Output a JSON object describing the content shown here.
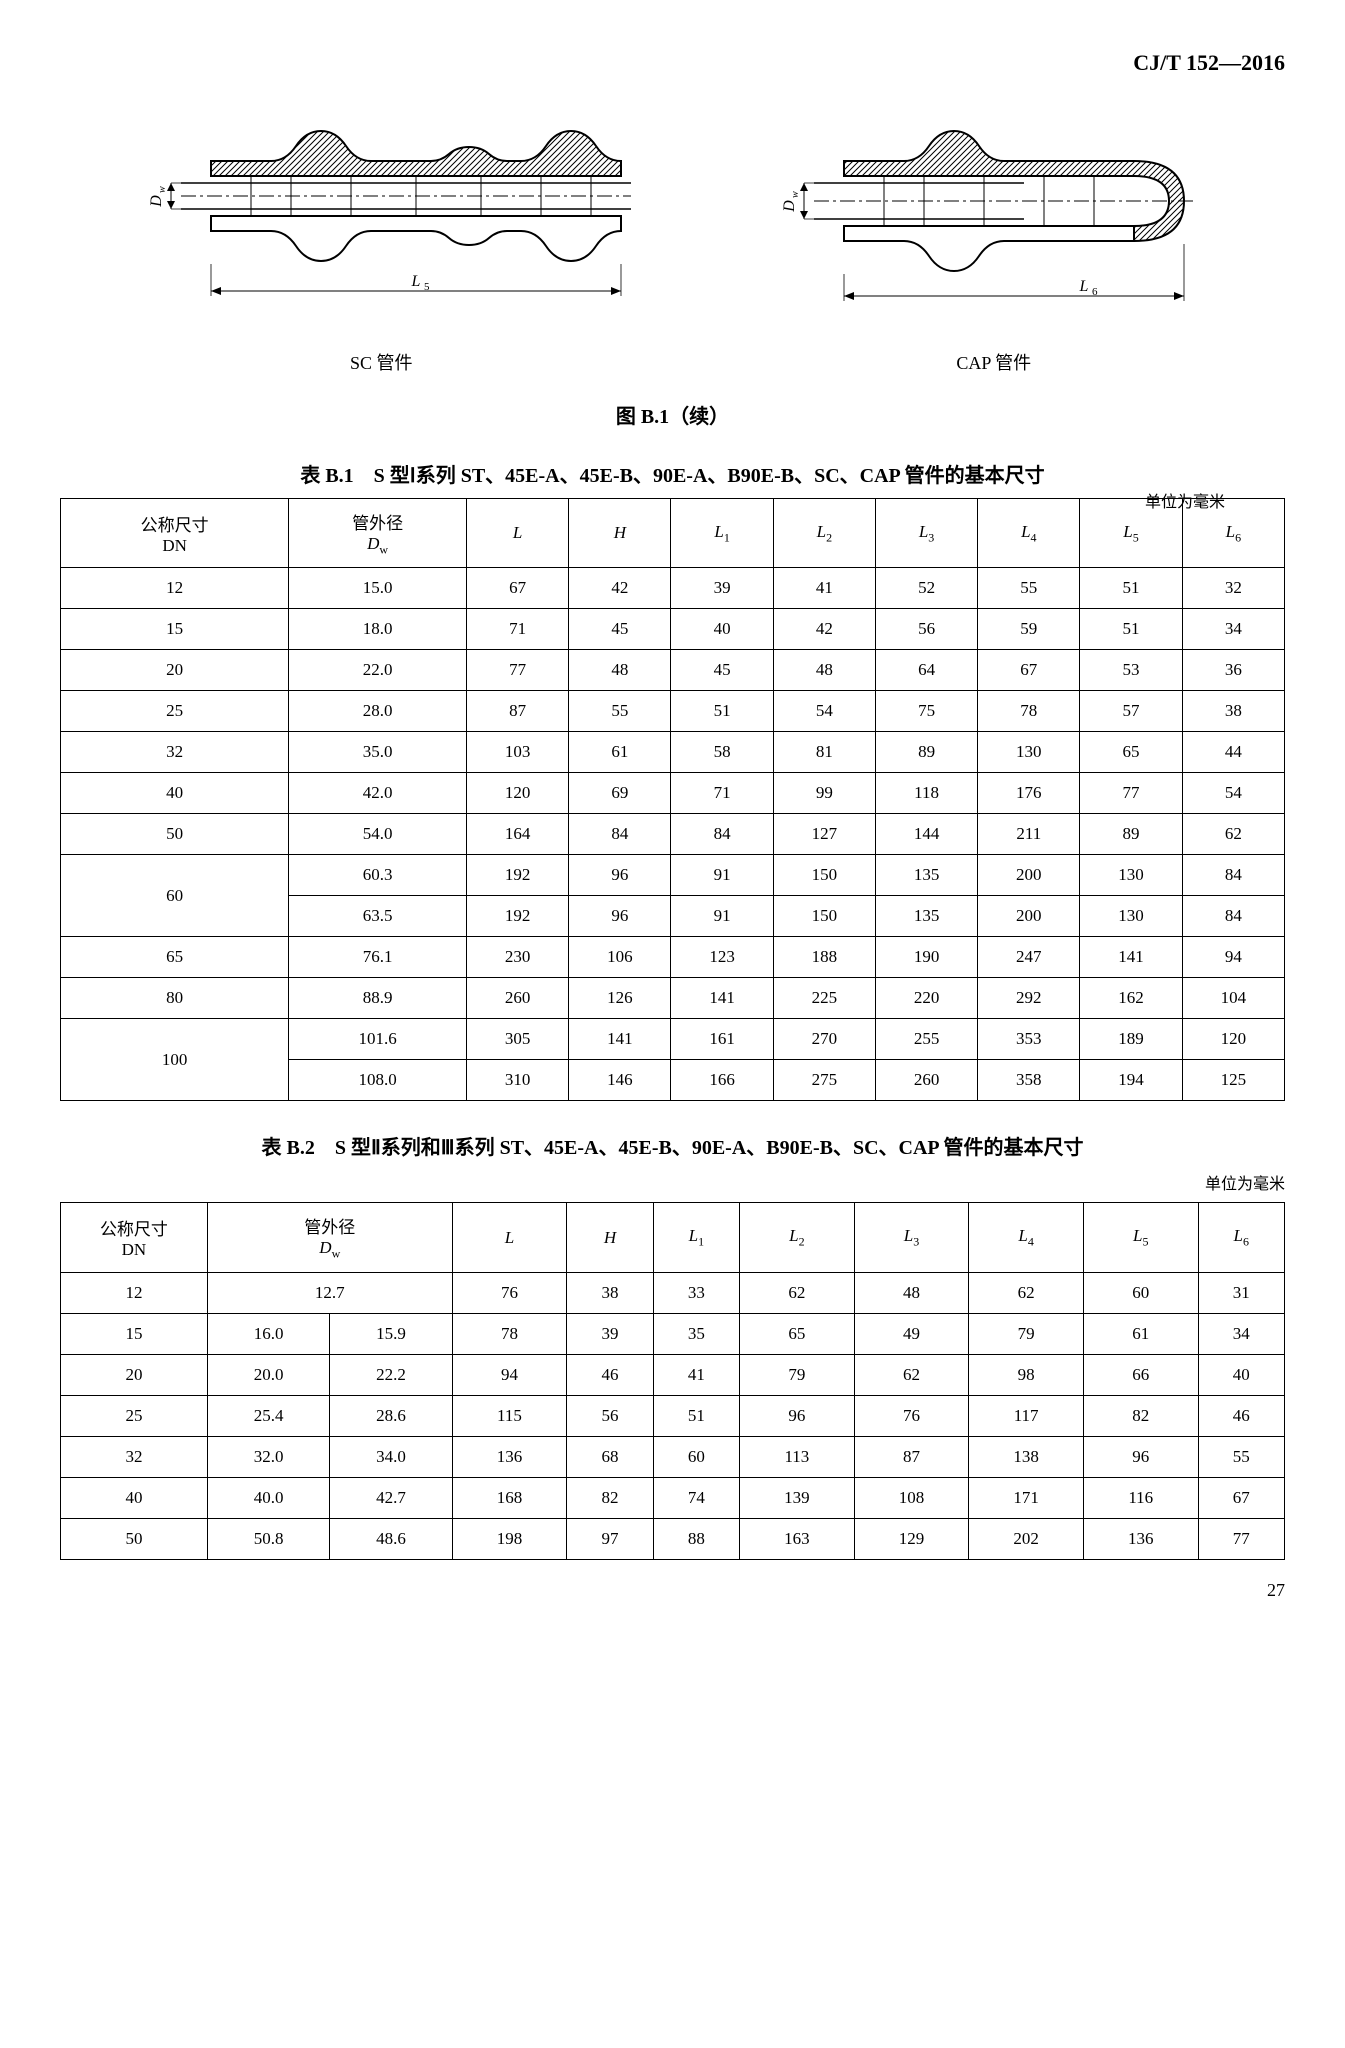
{
  "doc_code": "CJ/T 152—2016",
  "diagrams": {
    "left": {
      "dim_v": "Dw",
      "dim_h": "L5",
      "label": "SC 管件"
    },
    "right": {
      "dim_v": "Dw",
      "dim_h": "L6",
      "label": "CAP 管件"
    }
  },
  "fig_caption": "图 B.1（续）",
  "table1": {
    "title": "表 B.1　S 型Ⅰ系列 ST、45E-A、45E-B、90E-A、B90E-B、SC、CAP 管件的基本尺寸",
    "unit": "单位为毫米",
    "headers": {
      "dn": "公称尺寸\nDN",
      "dw": "管外径\nDw",
      "L": "L",
      "H": "H",
      "L1": "L1",
      "L2": "L2",
      "L3": "L3",
      "L4": "L4",
      "L5": "L5",
      "L6": "L6"
    },
    "rows": [
      {
        "dn": "12",
        "dw": "15.0",
        "L": "67",
        "H": "42",
        "L1": "39",
        "L2": "41",
        "L3": "52",
        "L4": "55",
        "L5": "51",
        "L6": "32"
      },
      {
        "dn": "15",
        "dw": "18.0",
        "L": "71",
        "H": "45",
        "L1": "40",
        "L2": "42",
        "L3": "56",
        "L4": "59",
        "L5": "51",
        "L6": "34"
      },
      {
        "dn": "20",
        "dw": "22.0",
        "L": "77",
        "H": "48",
        "L1": "45",
        "L2": "48",
        "L3": "64",
        "L4": "67",
        "L5": "53",
        "L6": "36"
      },
      {
        "dn": "25",
        "dw": "28.0",
        "L": "87",
        "H": "55",
        "L1": "51",
        "L2": "54",
        "L3": "75",
        "L4": "78",
        "L5": "57",
        "L6": "38"
      },
      {
        "dn": "32",
        "dw": "35.0",
        "L": "103",
        "H": "61",
        "L1": "58",
        "L2": "81",
        "L3": "89",
        "L4": "130",
        "L5": "65",
        "L6": "44"
      },
      {
        "dn": "40",
        "dw": "42.0",
        "L": "120",
        "H": "69",
        "L1": "71",
        "L2": "99",
        "L3": "118",
        "L4": "176",
        "L5": "77",
        "L6": "54"
      },
      {
        "dn": "50",
        "dw": "54.0",
        "L": "164",
        "H": "84",
        "L1": "84",
        "L2": "127",
        "L3": "144",
        "L4": "211",
        "L5": "89",
        "L6": "62"
      },
      {
        "dn": "60",
        "dn_span": 2,
        "dw": "60.3",
        "L": "192",
        "H": "96",
        "L1": "91",
        "L2": "150",
        "L3": "135",
        "L4": "200",
        "L5": "130",
        "L6": "84"
      },
      {
        "dw": "63.5",
        "L": "192",
        "H": "96",
        "L1": "91",
        "L2": "150",
        "L3": "135",
        "L4": "200",
        "L5": "130",
        "L6": "84"
      },
      {
        "dn": "65",
        "dw": "76.1",
        "L": "230",
        "H": "106",
        "L1": "123",
        "L2": "188",
        "L3": "190",
        "L4": "247",
        "L5": "141",
        "L6": "94"
      },
      {
        "dn": "80",
        "dw": "88.9",
        "L": "260",
        "H": "126",
        "L1": "141",
        "L2": "225",
        "L3": "220",
        "L4": "292",
        "L5": "162",
        "L6": "104"
      },
      {
        "dn": "100",
        "dn_span": 2,
        "dw": "101.6",
        "L": "305",
        "H": "141",
        "L1": "161",
        "L2": "270",
        "L3": "255",
        "L4": "353",
        "L5": "189",
        "L6": "120"
      },
      {
        "dw": "108.0",
        "L": "310",
        "H": "146",
        "L1": "166",
        "L2": "275",
        "L3": "260",
        "L4": "358",
        "L5": "194",
        "L6": "125"
      }
    ]
  },
  "table2": {
    "title": "表 B.2　S 型Ⅱ系列和Ⅲ系列 ST、45E-A、45E-B、90E-A、B90E-B、SC、CAP 管件的基本尺寸",
    "unit": "单位为毫米",
    "headers": {
      "dn": "公称尺寸\nDN",
      "dw": "管外径\nDw",
      "L": "L",
      "H": "H",
      "L1": "L1",
      "L2": "L2",
      "L3": "L3",
      "L4": "L4",
      "L5": "L5",
      "L6": "L6"
    },
    "rows": [
      {
        "dn": "12",
        "dw_a": "12.7",
        "dw_b": "",
        "L": "76",
        "H": "38",
        "L1": "33",
        "L2": "62",
        "L3": "48",
        "L4": "62",
        "L5": "60",
        "L6": "31"
      },
      {
        "dn": "15",
        "dw_a": "16.0",
        "dw_b": "15.9",
        "L": "78",
        "H": "39",
        "L1": "35",
        "L2": "65",
        "L3": "49",
        "L4": "79",
        "L5": "61",
        "L6": "34"
      },
      {
        "dn": "20",
        "dw_a": "20.0",
        "dw_b": "22.2",
        "L": "94",
        "H": "46",
        "L1": "41",
        "L2": "79",
        "L3": "62",
        "L4": "98",
        "L5": "66",
        "L6": "40"
      },
      {
        "dn": "25",
        "dw_a": "25.4",
        "dw_b": "28.6",
        "L": "115",
        "H": "56",
        "L1": "51",
        "L2": "96",
        "L3": "76",
        "L4": "117",
        "L5": "82",
        "L6": "46"
      },
      {
        "dn": "32",
        "dw_a": "32.0",
        "dw_b": "34.0",
        "L": "136",
        "H": "68",
        "L1": "60",
        "L2": "113",
        "L3": "87",
        "L4": "138",
        "L5": "96",
        "L6": "55"
      },
      {
        "dn": "40",
        "dw_a": "40.0",
        "dw_b": "42.7",
        "L": "168",
        "H": "82",
        "L1": "74",
        "L2": "139",
        "L3": "108",
        "L4": "171",
        "L5": "116",
        "L6": "67"
      },
      {
        "dn": "50",
        "dw_a": "50.8",
        "dw_b": "48.6",
        "L": "198",
        "H": "97",
        "L1": "88",
        "L2": "163",
        "L3": "129",
        "L4": "202",
        "L5": "136",
        "L6": "77"
      }
    ]
  },
  "page_number": "27",
  "colors": {
    "text": "#000000",
    "background": "#ffffff",
    "border": "#000000",
    "hatch": "#000000"
  }
}
